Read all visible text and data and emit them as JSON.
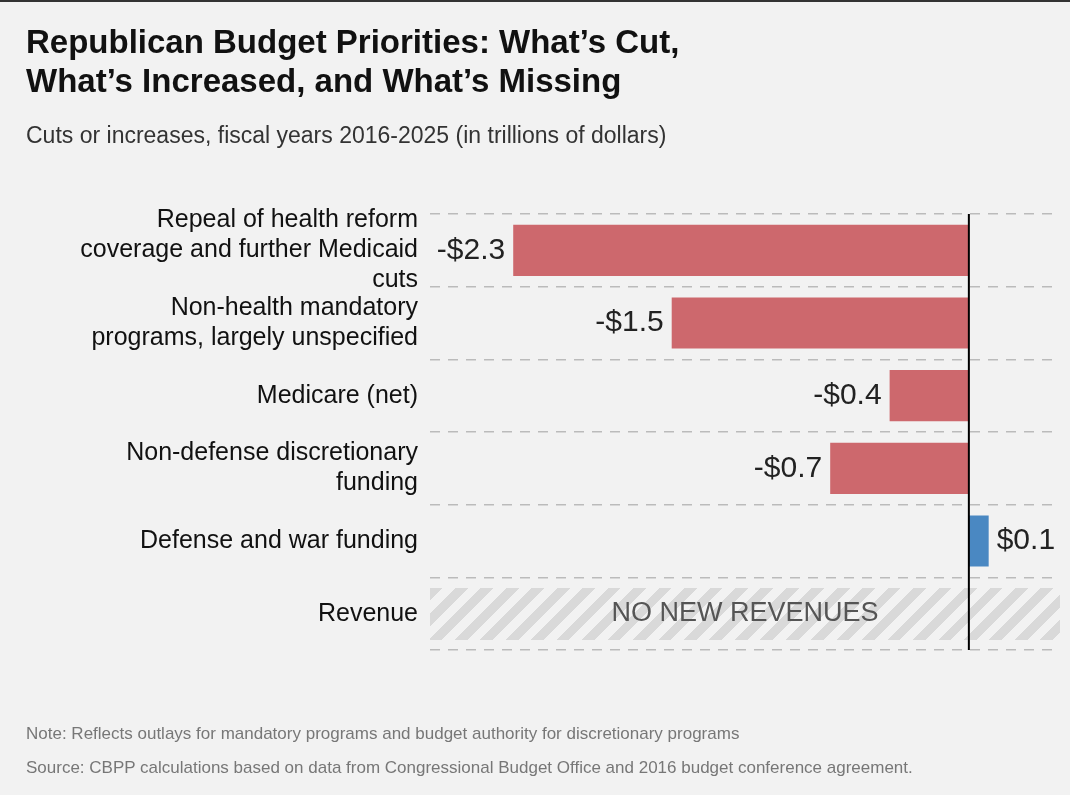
{
  "chart_data": {
    "type": "bar",
    "orientation": "horizontal",
    "title": "Republican Budget Priorities: What’s Cut, What’s Increased, and What’s Missing",
    "subtitle": "Cuts or increases, fiscal years 2016-2025 (in trillions of dollars)",
    "categories": [
      "Repeal of health reform coverage and further Medicaid cuts",
      "Non-health mandatory programs, largely unspecified",
      "Medicare (net)",
      "Non-defense discretionary funding",
      "Defense and war funding",
      "Revenue"
    ],
    "values": [
      -2.3,
      -1.5,
      -0.4,
      -0.7,
      0.1,
      null
    ],
    "colors": [
      "#cd686d",
      "#cd686d",
      "#cd686d",
      "#cd686d",
      "#4a88c2",
      "#cd686d"
    ],
    "value_labels": [
      "-$2.3",
      "-$1.5",
      "-$0.4",
      "-$0.7",
      "$0.1",
      null
    ],
    "xlim": [
      -2.72,
      0.46
    ],
    "tick_labels": "y",
    "grid": "y",
    "legend": false,
    "ref_lines": [
      {
        "axis": "x",
        "value": 0,
        "color": "#000000"
      }
    ],
    "annotations": [
      "NO NEW REVENUES",
      "Note: Reflects outlays for mandatory programs and budget authority for discretionary programs",
      "Source: CBPP calculations based on data from Congressional Budget Office and 2016 budget conference agreement."
    ]
  }
}
